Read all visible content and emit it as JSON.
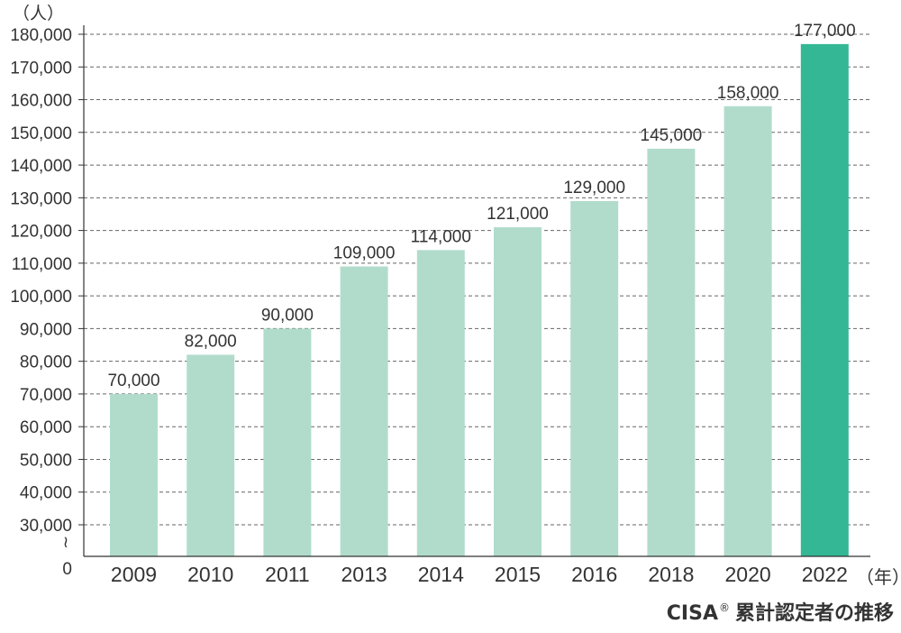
{
  "chart_data": {
    "type": "bar",
    "title": "CISA® 累計認定者の推移",
    "title_main": "CISA",
    "title_mark": "®",
    "title_sub": "累計認定者の推移",
    "y_unit": "（人）",
    "x_unit": "（年）",
    "categories": [
      "2009",
      "2010",
      "2011",
      "2013",
      "2014",
      "2015",
      "2016",
      "2018",
      "2020",
      "2022"
    ],
    "values": [
      70000,
      82000,
      90000,
      109000,
      114000,
      121000,
      129000,
      145000,
      158000,
      177000
    ],
    "data_labels": [
      "70,000",
      "82,000",
      "90,000",
      "109,000",
      "114,000",
      "121,000",
      "129,000",
      "145,000",
      "158,000",
      "177,000"
    ],
    "highlight_index": 9,
    "y_ticks": [
      30000,
      40000,
      50000,
      60000,
      70000,
      80000,
      90000,
      100000,
      110000,
      120000,
      130000,
      140000,
      150000,
      160000,
      170000,
      180000
    ],
    "y_tick_labels": [
      "30,000",
      "40,000",
      "50,000",
      "60,000",
      "70,000",
      "80,000",
      "90,000",
      "100,000",
      "110,000",
      "120,000",
      "130,000",
      "140,000",
      "150,000",
      "160,000",
      "170,000",
      "180,000"
    ],
    "y_zero_label": "0",
    "y_break_symbol": "≀",
    "y_axis_break": [
      0,
      30000
    ],
    "ylim": [
      0,
      180000
    ],
    "grid": true,
    "grid_style": "dashed",
    "colors": {
      "bar": "#b1dccc",
      "highlight": "#34b795",
      "grid": "#666666",
      "axis": "#333333",
      "text": "#333333"
    }
  }
}
